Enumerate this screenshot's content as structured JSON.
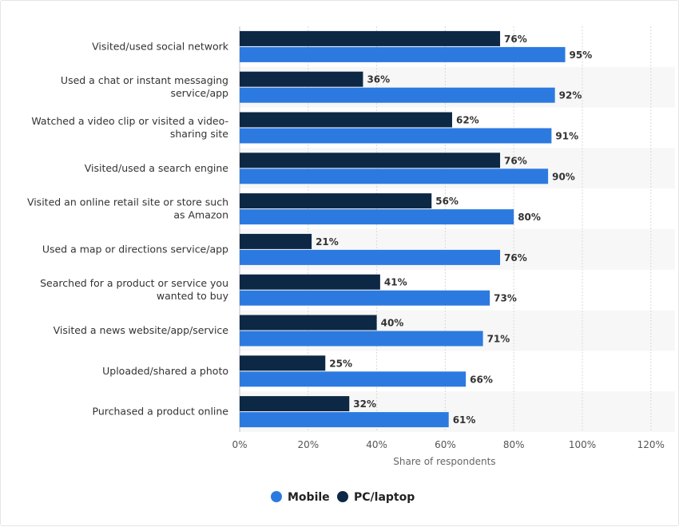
{
  "chart_data": {
    "type": "bar",
    "orientation": "horizontal",
    "categories": [
      [
        "Visited/used social network"
      ],
      [
        "Used a chat or instant messaging",
        "service/app"
      ],
      [
        "Watched a video clip or visited a video-",
        "sharing site"
      ],
      [
        "Visited/used a search engine"
      ],
      [
        "Visited an online retail site or store such",
        "as Amazon"
      ],
      [
        "Used a map or directions service/app"
      ],
      [
        "Searched for a product or service you",
        "wanted to buy"
      ],
      [
        "Visited a news website/app/service"
      ],
      [
        "Uploaded/shared a photo"
      ],
      [
        "Purchased a product online"
      ]
    ],
    "series": [
      {
        "name": "PC/laptop",
        "color": "#0d2845",
        "values": [
          76,
          36,
          62,
          76,
          56,
          21,
          41,
          40,
          25,
          32
        ]
      },
      {
        "name": "Mobile",
        "color": "#2c7ae0",
        "values": [
          95,
          92,
          91,
          90,
          80,
          76,
          73,
          71,
          66,
          61
        ]
      }
    ],
    "value_suffix": "%",
    "xlim": [
      0,
      120
    ],
    "xticks": [
      0,
      20,
      40,
      60,
      80,
      100,
      120
    ],
    "xtick_labels": [
      "0%",
      "20%",
      "40%",
      "60%",
      "80%",
      "100%",
      "120%"
    ],
    "xlabel": "Share of respondents",
    "ylabel": "",
    "grid": true,
    "legend": {
      "position": "bottom",
      "order": [
        "Mobile",
        "PC/laptop"
      ]
    }
  }
}
